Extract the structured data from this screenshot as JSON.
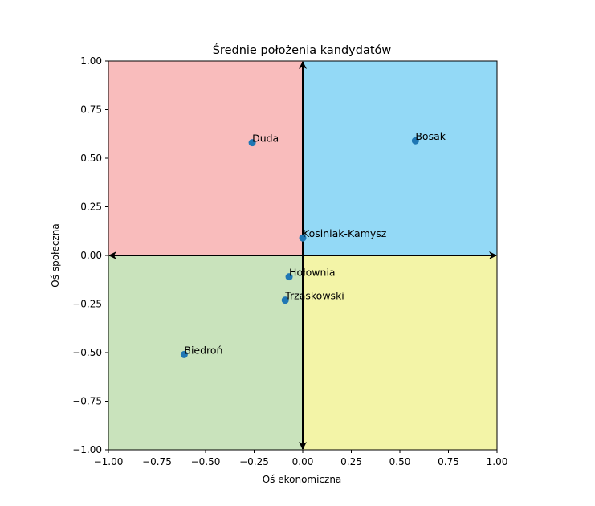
{
  "chart_data": {
    "type": "scatter",
    "title": "Średnie położenia kandydatów",
    "xlabel": "Oś ekonomiczna",
    "ylabel": "Oś społeczna",
    "xlim": [
      -1.0,
      1.0
    ],
    "ylim": [
      -1.0,
      1.0
    ],
    "xticks": [
      "−1.00",
      "−0.75",
      "−0.50",
      "−0.25",
      "0.00",
      "0.25",
      "0.50",
      "0.75",
      "1.00"
    ],
    "yticks": [
      "−1.00",
      "−0.75",
      "−0.50",
      "−0.25",
      "0.00",
      "0.25",
      "0.50",
      "0.75",
      "1.00"
    ],
    "xtick_values": [
      -1.0,
      -0.75,
      -0.5,
      -0.25,
      0.0,
      0.25,
      0.5,
      0.75,
      1.0
    ],
    "ytick_values": [
      -1.0,
      -0.75,
      -0.5,
      -0.25,
      0.0,
      0.25,
      0.5,
      0.75,
      1.0
    ],
    "grid": false,
    "quadrants": [
      {
        "quadrant": "top-left",
        "color": "#f9bcbc"
      },
      {
        "quadrant": "top-right",
        "color": "#93d9f6"
      },
      {
        "quadrant": "bottom-left",
        "color": "#c9e3bc"
      },
      {
        "quadrant": "bottom-right",
        "color": "#f3f4a7"
      }
    ],
    "marker_color": "#1f77b4",
    "points": [
      {
        "label": "Duda",
        "x": -0.26,
        "y": 0.58
      },
      {
        "label": "Bosak",
        "x": 0.58,
        "y": 0.59
      },
      {
        "label": "Kosiniak-Kamysz",
        "x": 0.0,
        "y": 0.09
      },
      {
        "label": "Hołownia",
        "x": -0.07,
        "y": -0.11
      },
      {
        "label": "Trzaskowski",
        "x": -0.09,
        "y": -0.23
      },
      {
        "label": "Biedroń",
        "x": -0.61,
        "y": -0.51
      }
    ]
  }
}
